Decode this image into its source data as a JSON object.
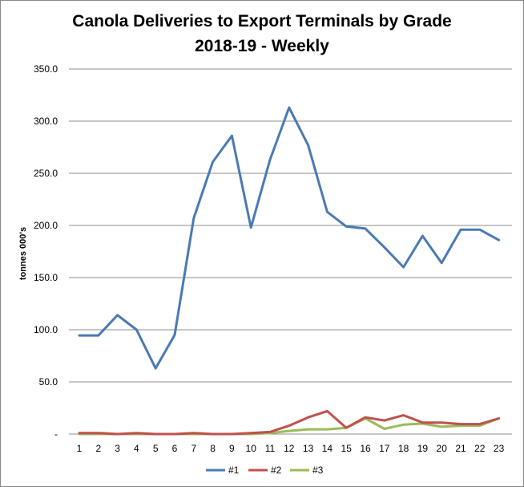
{
  "chart_data": {
    "type": "line",
    "title": [
      "Canola Deliveries to Export Terminals by Grade",
      "2018-19 - Weekly"
    ],
    "xlabel": "",
    "ylabel": "tonnes 000's",
    "ylim": [
      0,
      350
    ],
    "grid": true,
    "legend_position": "bottom-center",
    "y_ticks": [
      {
        "value": 0,
        "label": "-"
      },
      {
        "value": 50,
        "label": "50.0"
      },
      {
        "value": 100,
        "label": "100.0"
      },
      {
        "value": 150,
        "label": "150.0"
      },
      {
        "value": 200,
        "label": "200.0"
      },
      {
        "value": 250,
        "label": "250.0"
      },
      {
        "value": 300,
        "label": "300.0"
      },
      {
        "value": 350,
        "label": "350.0"
      }
    ],
    "categories": [
      "1",
      "2",
      "3",
      "4",
      "5",
      "6",
      "7",
      "8",
      "9",
      "10",
      "11",
      "12",
      "13",
      "14",
      "15",
      "16",
      "17",
      "18",
      "19",
      "20",
      "21",
      "22",
      "23"
    ],
    "series": [
      {
        "name": "#1",
        "color": "#4a7ab5",
        "values": [
          94.5,
          94.5,
          114,
          100,
          63,
          95,
          207,
          261,
          286,
          198,
          263,
          313,
          277,
          213,
          199,
          197,
          179,
          160,
          190,
          164,
          196,
          196,
          186
        ]
      },
      {
        "name": "#2",
        "color": "#c0504d",
        "values": [
          1,
          1,
          0,
          1,
          0,
          0,
          1,
          0,
          0,
          1,
          2,
          8,
          16,
          22,
          6,
          16,
          13,
          18,
          11,
          11,
          9.5,
          9.5,
          15
        ]
      },
      {
        "name": "#3",
        "color": "#9bbb59",
        "values": [
          0,
          0,
          0,
          0,
          0,
          0,
          0,
          0,
          0,
          0,
          1,
          3,
          4.5,
          4.5,
          6,
          15,
          5,
          9,
          10,
          7,
          8,
          8,
          15
        ]
      }
    ]
  }
}
